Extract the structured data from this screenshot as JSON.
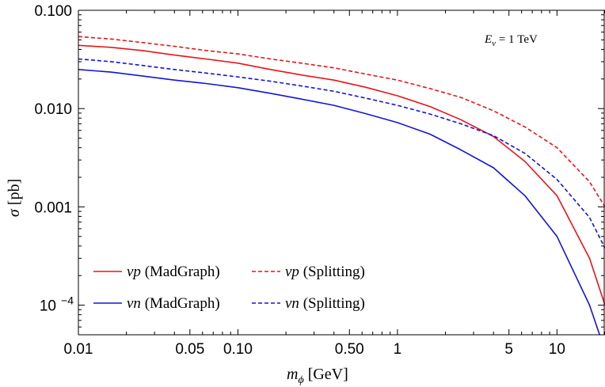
{
  "chart_data": {
    "type": "line",
    "xlabel": {
      "main": "m",
      "sub": "ϕ",
      "unit": " [GeV]"
    },
    "ylabel": {
      "main": "σ",
      "unit": " [pb]"
    },
    "annotation": {
      "main": "E",
      "sub": "ν",
      "rest": " = 1 TeV"
    },
    "x_scale": "log",
    "y_scale": "log",
    "xlim": [
      0.01,
      20
    ],
    "ylim": [
      5e-05,
      0.1
    ],
    "x_ticks": [
      {
        "value": 0.01,
        "label": "0.01"
      },
      {
        "value": 0.05,
        "label": "0.05"
      },
      {
        "value": 0.1,
        "label": "0.10"
      },
      {
        "value": 0.5,
        "label": "0.50"
      },
      {
        "value": 1,
        "label": "1"
      },
      {
        "value": 5,
        "label": "5"
      },
      {
        "value": 10,
        "label": "10"
      }
    ],
    "y_ticks": [
      {
        "value": 0.1,
        "label": "0.100"
      },
      {
        "value": 0.01,
        "label": "0.010"
      },
      {
        "value": 0.001,
        "label": "0.001"
      },
      {
        "value": 0.0001,
        "label": "10",
        "sup": "−4"
      }
    ],
    "grid": false,
    "legend_position": "bottom-left",
    "series": [
      {
        "name": "νp (MadGraph)",
        "name_main": "νp",
        "name_rest": " (MadGraph)",
        "color": "#e8141a",
        "dash": false,
        "x": [
          0.01,
          0.016,
          0.025,
          0.04,
          0.063,
          0.1,
          0.16,
          0.25,
          0.4,
          0.63,
          1,
          1.6,
          2.5,
          4,
          6.3,
          10,
          16,
          20
        ],
        "y": [
          0.044,
          0.042,
          0.039,
          0.035,
          0.032,
          0.029,
          0.025,
          0.022,
          0.0195,
          0.0165,
          0.0135,
          0.0105,
          0.0077,
          0.0052,
          0.0029,
          0.0013,
          0.0003,
          0.0001
        ]
      },
      {
        "name": "νp (Splitting)",
        "name_main": "νp",
        "name_rest": " (Splitting)",
        "color": "#e8141a",
        "dash": true,
        "x": [
          0.01,
          0.016,
          0.025,
          0.04,
          0.063,
          0.1,
          0.16,
          0.25,
          0.4,
          0.63,
          1,
          1.6,
          2.5,
          4,
          6.3,
          10,
          16,
          20
        ],
        "y": [
          0.054,
          0.051,
          0.047,
          0.043,
          0.039,
          0.036,
          0.032,
          0.029,
          0.026,
          0.0225,
          0.0195,
          0.016,
          0.013,
          0.0095,
          0.0065,
          0.004,
          0.0018,
          0.001
        ]
      },
      {
        "name": "νn (MadGraph)",
        "name_main": "νn",
        "name_rest": " (MadGraph)",
        "color": "#1414d8",
        "dash": false,
        "x": [
          0.01,
          0.016,
          0.025,
          0.04,
          0.063,
          0.1,
          0.16,
          0.25,
          0.4,
          0.63,
          1,
          1.6,
          2.5,
          4,
          6.3,
          10,
          16,
          18.5
        ],
        "y": [
          0.025,
          0.0235,
          0.0215,
          0.0195,
          0.018,
          0.0163,
          0.0143,
          0.0125,
          0.0108,
          0.0089,
          0.0072,
          0.0055,
          0.0038,
          0.0025,
          0.0013,
          0.0005,
          0.0001,
          5e-05
        ]
      },
      {
        "name": "νn (Splitting)",
        "name_main": "νn",
        "name_rest": " (Splitting)",
        "color": "#1414d8",
        "dash": true,
        "x": [
          0.01,
          0.016,
          0.025,
          0.04,
          0.063,
          0.1,
          0.16,
          0.25,
          0.4,
          0.63,
          1,
          1.6,
          2.5,
          4,
          6.3,
          10,
          16,
          20
        ],
        "y": [
          0.032,
          0.03,
          0.0275,
          0.025,
          0.023,
          0.021,
          0.019,
          0.017,
          0.015,
          0.0128,
          0.0108,
          0.0088,
          0.007,
          0.0053,
          0.0035,
          0.0019,
          0.00078,
          0.00038
        ]
      }
    ]
  }
}
